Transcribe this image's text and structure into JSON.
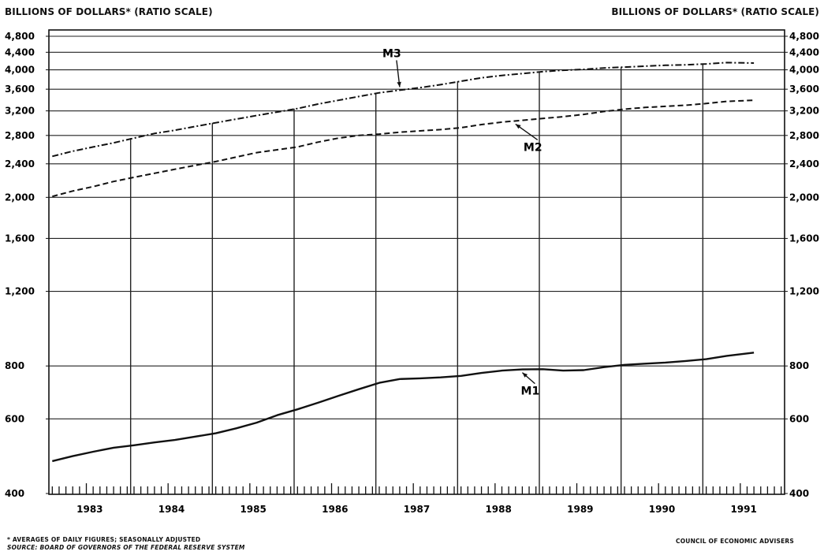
{
  "header": {
    "ylabel_left": "BILLIONS OF DOLLARS* (RATIO SCALE)",
    "ylabel_right": "BILLIONS OF DOLLARS* (RATIO SCALE)"
  },
  "footer": {
    "footnote": "* AVERAGES OF DAILY FIGURES; SEASONALLY ADJUSTED",
    "source": "SOURCE: BOARD OF GOVERNORS OF THE FEDERAL RESERVE SYSTEM",
    "credit": "COUNCIL OF ECONOMIC ADVISERS"
  },
  "chart_data": {
    "type": "line",
    "title": "",
    "xlabel": "",
    "ylabel": "BILLIONS OF DOLLARS* (RATIO SCALE)",
    "y_scale": "log",
    "ylim": [
      400,
      4800
    ],
    "xlim": [
      "1983-01",
      "1991-12"
    ],
    "grid": true,
    "legend": "none",
    "y_ticks": [
      {
        "value": 400,
        "label": "400"
      },
      {
        "value": 600,
        "label": "600"
      },
      {
        "value": 800,
        "label": "800"
      },
      {
        "value": 1200,
        "label": "1,200"
      },
      {
        "value": 1600,
        "label": "1,600"
      },
      {
        "value": 2000,
        "label": "2,000"
      },
      {
        "value": 2400,
        "label": "2,400"
      },
      {
        "value": 2800,
        "label": "2,800"
      },
      {
        "value": 3200,
        "label": "3,200"
      },
      {
        "value": 3600,
        "label": "3,600"
      },
      {
        "value": 4000,
        "label": "4,000"
      },
      {
        "value": 4400,
        "label": "4,400"
      },
      {
        "value": 4800,
        "label": "4,800"
      }
    ],
    "x_tick_labels": [
      "1983",
      "1984",
      "1985",
      "1986",
      "1987",
      "1988",
      "1989",
      "1990",
      "1991"
    ],
    "series": [
      {
        "name": "M3",
        "style": "dash-dot",
        "label_date": "1987-04",
        "points": [
          [
            "1983-01",
            2500
          ],
          [
            "1983-04",
            2570
          ],
          [
            "1983-07",
            2630
          ],
          [
            "1983-10",
            2690
          ],
          [
            "1984-01",
            2760
          ],
          [
            "1984-04",
            2830
          ],
          [
            "1984-07",
            2880
          ],
          [
            "1984-10",
            2940
          ],
          [
            "1985-01",
            3000
          ],
          [
            "1985-04",
            3060
          ],
          [
            "1985-07",
            3120
          ],
          [
            "1985-10",
            3180
          ],
          [
            "1986-01",
            3240
          ],
          [
            "1986-04",
            3320
          ],
          [
            "1986-07",
            3390
          ],
          [
            "1986-10",
            3460
          ],
          [
            "1987-01",
            3530
          ],
          [
            "1987-04",
            3580
          ],
          [
            "1987-07",
            3630
          ],
          [
            "1987-10",
            3690
          ],
          [
            "1988-01",
            3760
          ],
          [
            "1988-04",
            3830
          ],
          [
            "1988-07",
            3880
          ],
          [
            "1988-10",
            3920
          ],
          [
            "1989-01",
            3960
          ],
          [
            "1989-04",
            3990
          ],
          [
            "1989-07",
            4010
          ],
          [
            "1989-10",
            4040
          ],
          [
            "1990-01",
            4060
          ],
          [
            "1990-04",
            4080
          ],
          [
            "1990-07",
            4100
          ],
          [
            "1990-10",
            4110
          ],
          [
            "1991-01",
            4130
          ],
          [
            "1991-04",
            4160
          ],
          [
            "1991-08",
            4150
          ]
        ]
      },
      {
        "name": "M2",
        "style": "dashed",
        "label_date": "1988-09",
        "points": [
          [
            "1983-01",
            2010
          ],
          [
            "1983-04",
            2070
          ],
          [
            "1983-07",
            2120
          ],
          [
            "1983-10",
            2180
          ],
          [
            "1984-01",
            2230
          ],
          [
            "1984-04",
            2280
          ],
          [
            "1984-07",
            2330
          ],
          [
            "1984-10",
            2380
          ],
          [
            "1985-01",
            2430
          ],
          [
            "1985-04",
            2490
          ],
          [
            "1985-07",
            2550
          ],
          [
            "1985-10",
            2590
          ],
          [
            "1986-01",
            2630
          ],
          [
            "1986-04",
            2700
          ],
          [
            "1986-07",
            2760
          ],
          [
            "1986-10",
            2800
          ],
          [
            "1987-01",
            2820
          ],
          [
            "1987-04",
            2850
          ],
          [
            "1987-07",
            2870
          ],
          [
            "1987-10",
            2890
          ],
          [
            "1988-01",
            2920
          ],
          [
            "1988-04",
            2970
          ],
          [
            "1988-07",
            3010
          ],
          [
            "1988-10",
            3040
          ],
          [
            "1989-01",
            3070
          ],
          [
            "1989-04",
            3100
          ],
          [
            "1989-07",
            3140
          ],
          [
            "1989-10",
            3190
          ],
          [
            "1990-01",
            3230
          ],
          [
            "1990-04",
            3260
          ],
          [
            "1990-07",
            3280
          ],
          [
            "1990-10",
            3300
          ],
          [
            "1991-01",
            3330
          ],
          [
            "1991-04",
            3370
          ],
          [
            "1991-08",
            3390
          ]
        ]
      },
      {
        "name": "M1",
        "style": "solid",
        "label_date": "1988-10",
        "points": [
          [
            "1983-01",
            477
          ],
          [
            "1983-04",
            490
          ],
          [
            "1983-07",
            502
          ],
          [
            "1983-10",
            513
          ],
          [
            "1984-01",
            520
          ],
          [
            "1984-04",
            528
          ],
          [
            "1984-07",
            535
          ],
          [
            "1984-10",
            545
          ],
          [
            "1985-01",
            555
          ],
          [
            "1985-04",
            570
          ],
          [
            "1985-07",
            588
          ],
          [
            "1985-10",
            612
          ],
          [
            "1986-01",
            632
          ],
          [
            "1986-04",
            655
          ],
          [
            "1986-07",
            680
          ],
          [
            "1986-10",
            705
          ],
          [
            "1987-01",
            730
          ],
          [
            "1987-04",
            745
          ],
          [
            "1987-07",
            748
          ],
          [
            "1987-10",
            752
          ],
          [
            "1988-01",
            758
          ],
          [
            "1988-04",
            770
          ],
          [
            "1988-07",
            780
          ],
          [
            "1988-10",
            785
          ],
          [
            "1989-01",
            786
          ],
          [
            "1989-04",
            780
          ],
          [
            "1989-07",
            782
          ],
          [
            "1989-10",
            795
          ],
          [
            "1990-01",
            805
          ],
          [
            "1990-04",
            810
          ],
          [
            "1990-07",
            815
          ],
          [
            "1990-10",
            822
          ],
          [
            "1991-01",
            830
          ],
          [
            "1991-04",
            845
          ],
          [
            "1991-08",
            860
          ]
        ]
      }
    ]
  }
}
